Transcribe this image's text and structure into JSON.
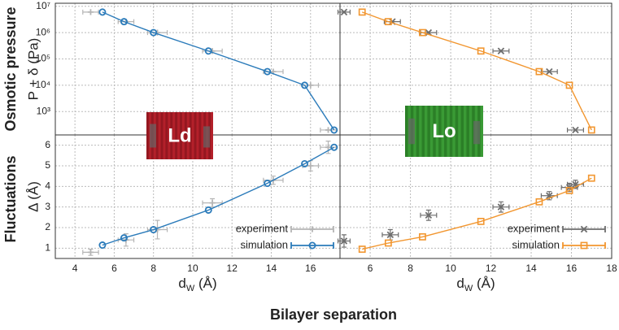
{
  "figure": {
    "row_labels": [
      "Osmotic pressure",
      "Fluctuations"
    ],
    "xlabel": "Bilayer separation"
  },
  "chart_data": [
    {
      "type": "scatter",
      "ylabel": "P + δ (Pa)",
      "ylog": true,
      "ylim": [
        130,
        13000000
      ],
      "yticks": [
        {
          "value": 1000,
          "label": "10³"
        },
        {
          "value": 10000,
          "label": "10⁴"
        },
        {
          "value": 100000,
          "label": "10⁵"
        },
        {
          "value": 1000000,
          "label": "10⁶"
        },
        {
          "value": 10000000,
          "label": "10⁷"
        }
      ],
      "xlim": [
        3,
        17.5
      ],
      "xticks": [
        4,
        6,
        8,
        10,
        12,
        14,
        16
      ],
      "xtick_labels": false,
      "grid": true,
      "image_label": "Ld",
      "series": [
        {
          "color": "#b5b5b5",
          "marker": "plus",
          "x": [
            4.8,
            6.6,
            8.2,
            11.0,
            14.1,
            16.0,
            16.9
          ],
          "values": [
            6000000,
            2600000,
            1000000,
            200000,
            33000,
            10000,
            200
          ],
          "xerr": [
            0.4,
            0.4,
            0.5,
            0.5,
            0.5,
            0.4,
            0.4
          ]
        },
        {
          "color": "#2b7bba",
          "marker": "circle",
          "connect": true,
          "x": [
            5.4,
            6.5,
            8.0,
            10.8,
            13.8,
            15.7,
            17.2
          ],
          "values": [
            6000000,
            2600000,
            1000000,
            200000,
            33000,
            10000,
            200
          ]
        }
      ]
    },
    {
      "type": "scatter",
      "ylabel": "Δ (Å)",
      "ylim": [
        0.5,
        6.5
      ],
      "yticks": [
        1,
        2,
        3,
        4,
        5,
        6
      ],
      "xlim": [
        3,
        17.5
      ],
      "xticks": [
        4,
        6,
        8,
        10,
        12,
        14,
        16
      ],
      "xlabel": {
        "symbol": "d",
        "subscript": "W",
        "unit": " (Å)"
      },
      "grid": true,
      "legend": "lower right",
      "series": [
        {
          "name": "experiment",
          "color": "#b5b5b5",
          "marker": "plus",
          "x": [
            4.8,
            6.6,
            8.2,
            11.0,
            14.1,
            16.0,
            16.9
          ],
          "values": [
            0.8,
            1.4,
            1.9,
            3.2,
            4.3,
            5.0,
            5.9
          ],
          "xerr": [
            0.4,
            0.4,
            0.5,
            0.5,
            0.5,
            0.4,
            0.4
          ],
          "yerr": [
            0.15,
            0.3,
            0.45,
            0.2,
            0.2,
            0.25,
            0.3
          ]
        },
        {
          "name": "simulation",
          "color": "#2b7bba",
          "marker": "circle",
          "connect": true,
          "x": [
            5.4,
            6.5,
            8.0,
            10.8,
            13.8,
            15.7,
            17.2
          ],
          "values": [
            1.15,
            1.5,
            1.9,
            2.85,
            4.15,
            5.1,
            5.9
          ]
        }
      ]
    },
    {
      "type": "scatter",
      "ylog": true,
      "ylim": [
        130,
        13000000
      ],
      "yticks": [
        1000,
        10000,
        100000,
        1000000,
        10000000
      ],
      "ytick_labels": false,
      "xlim": [
        4.5,
        18
      ],
      "xticks": [
        6,
        8,
        10,
        12,
        14,
        16,
        18
      ],
      "xtick_labels": false,
      "grid": true,
      "image_label": "Lo",
      "series": [
        {
          "color": "#6e6e6e",
          "marker": "cross",
          "x": [
            4.7,
            7.1,
            8.9,
            12.5,
            14.9,
            16.2
          ],
          "values": [
            6000000,
            2600000,
            1000000,
            200000,
            33000,
            200
          ],
          "xerr": [
            0.3,
            0.4,
            0.4,
            0.4,
            0.4,
            0.4
          ]
        },
        {
          "color": "#f2962f",
          "marker": "square",
          "connect": true,
          "x": [
            5.6,
            6.9,
            8.6,
            11.5,
            14.4,
            15.9,
            17.0
          ],
          "values": [
            6000000,
            2600000,
            1000000,
            200000,
            33000,
            10000,
            200
          ]
        }
      ]
    },
    {
      "type": "scatter",
      "ylim": [
        0.5,
        6.5
      ],
      "yticks": [
        1,
        2,
        3,
        4,
        5,
        6
      ],
      "ytick_labels": false,
      "xlim": [
        4.5,
        18
      ],
      "xticks": [
        6,
        8,
        10,
        12,
        14,
        16,
        18
      ],
      "xlabel": {
        "symbol": "d",
        "subscript": "W",
        "unit": " (Å)"
      },
      "grid": true,
      "legend": "lower right",
      "series": [
        {
          "name": "experiment",
          "color": "#6e6e6e",
          "marker": "cross",
          "x": [
            4.7,
            7.0,
            8.9,
            12.5,
            14.9,
            15.9,
            16.2
          ],
          "values": [
            1.35,
            1.65,
            2.6,
            3.0,
            3.55,
            3.95,
            4.1
          ],
          "xerr": [
            0.3,
            0.4,
            0.4,
            0.4,
            0.4,
            0.4,
            0.4
          ],
          "yerr": [
            0.3,
            0.25,
            0.25,
            0.25,
            0.2,
            0.2,
            0.2
          ]
        },
        {
          "name": "simulation",
          "color": "#f2962f",
          "marker": "square",
          "connect": true,
          "x": [
            5.6,
            6.9,
            8.6,
            11.5,
            14.4,
            15.9,
            17.0
          ],
          "values": [
            0.95,
            1.25,
            1.55,
            2.3,
            3.25,
            3.8,
            4.4
          ]
        }
      ]
    }
  ]
}
